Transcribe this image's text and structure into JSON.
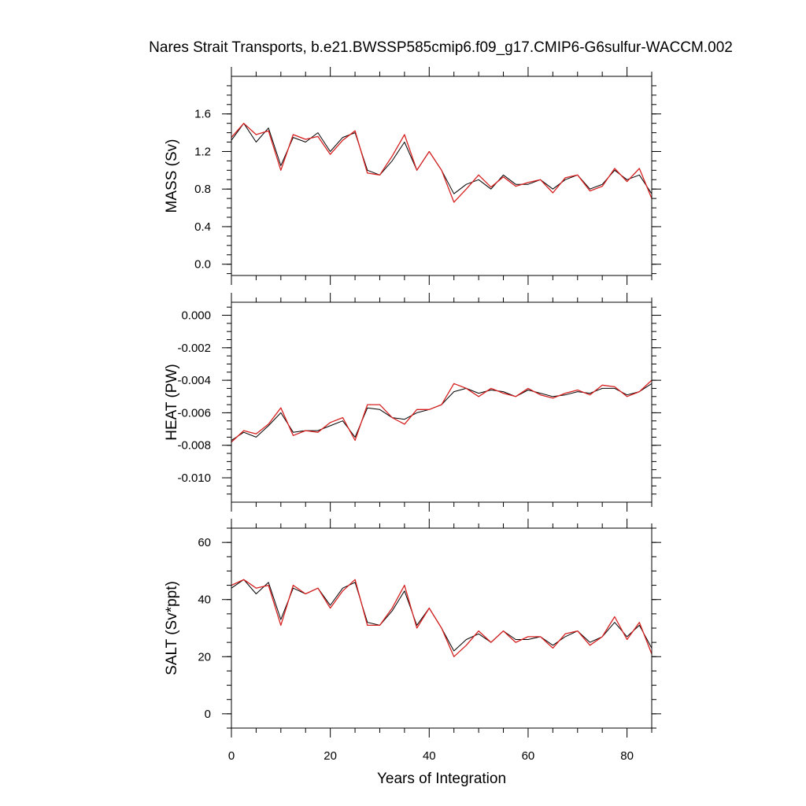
{
  "chart_data": {
    "type": "line",
    "title": "Nares Strait Transports, b.e21.BWSSP585cmip6.f09_g17.CMIP6-G6sulfur-WACCM.002",
    "xlabel": "Years of Integration",
    "xlim": [
      0,
      85
    ],
    "x_ticks": [
      0,
      20,
      40,
      60,
      80
    ],
    "x_tick_labels": [
      "0",
      "20",
      "40",
      "60",
      "80"
    ],
    "x": [
      0,
      2.5,
      5,
      7.5,
      10,
      12.5,
      15,
      17.5,
      20,
      22.5,
      25,
      27.5,
      30,
      32.5,
      35,
      37.5,
      40,
      42.5,
      45,
      47.5,
      50,
      52.5,
      55,
      57.5,
      60,
      62.5,
      65,
      67.5,
      70,
      72.5,
      75,
      77.5,
      80,
      82.5,
      85
    ],
    "panels": [
      {
        "ylabel": "MASS (Sv)",
        "ylim": [
          -0.12,
          2.0
        ],
        "y_ticks": [
          0.0,
          0.4,
          0.8,
          1.2,
          1.6
        ],
        "y_tick_labels": [
          "0.0",
          "0.4",
          "0.8",
          "1.2",
          "1.6"
        ],
        "series": [
          {
            "color": "#000000",
            "values": [
              1.32,
              1.5,
              1.3,
              1.45,
              1.05,
              1.35,
              1.3,
              1.4,
              1.2,
              1.35,
              1.4,
              1.0,
              0.95,
              1.1,
              1.3,
              1.0,
              1.2,
              1.0,
              0.75,
              0.85,
              0.9,
              0.8,
              0.95,
              0.85,
              0.85,
              0.9,
              0.8,
              0.9,
              0.95,
              0.8,
              0.85,
              1.0,
              0.9,
              0.95,
              0.75
            ]
          },
          {
            "color": "#d62020",
            "values": [
              1.35,
              1.5,
              1.38,
              1.42,
              1.0,
              1.38,
              1.33,
              1.36,
              1.17,
              1.32,
              1.42,
              0.97,
              0.95,
              1.15,
              1.38,
              1.0,
              1.2,
              1.0,
              0.66,
              0.8,
              0.95,
              0.82,
              0.93,
              0.83,
              0.87,
              0.9,
              0.76,
              0.92,
              0.95,
              0.78,
              0.83,
              1.02,
              0.88,
              1.02,
              0.7
            ]
          }
        ]
      },
      {
        "ylabel": "HEAT (PW)",
        "ylim": [
          -0.0115,
          0.0008
        ],
        "y_ticks": [
          -0.01,
          -0.008,
          -0.006,
          -0.004,
          -0.002,
          0.0
        ],
        "y_tick_labels": [
          "-0.010",
          "-0.008",
          "-0.006",
          "-0.004",
          "-0.002",
          "0.000"
        ],
        "series": [
          {
            "color": "#000000",
            "values": [
              -0.0077,
              -0.0072,
              -0.0075,
              -0.0068,
              -0.006,
              -0.0072,
              -0.0071,
              -0.0071,
              -0.0068,
              -0.0065,
              -0.0075,
              -0.0057,
              -0.0058,
              -0.0063,
              -0.0064,
              -0.006,
              -0.0058,
              -0.0055,
              -0.0047,
              -0.0045,
              -0.0048,
              -0.0046,
              -0.0047,
              -0.005,
              -0.0046,
              -0.0048,
              -0.005,
              -0.0049,
              -0.0047,
              -0.0048,
              -0.0045,
              -0.0045,
              -0.0049,
              -0.0047,
              -0.0042
            ]
          },
          {
            "color": "#d62020",
            "values": [
              -0.0078,
              -0.0071,
              -0.0073,
              -0.0067,
              -0.0057,
              -0.0074,
              -0.0071,
              -0.0072,
              -0.0066,
              -0.0063,
              -0.0077,
              -0.0055,
              -0.0055,
              -0.0063,
              -0.0067,
              -0.0058,
              -0.0058,
              -0.0055,
              -0.0042,
              -0.0045,
              -0.005,
              -0.0045,
              -0.0048,
              -0.005,
              -0.0045,
              -0.0049,
              -0.0051,
              -0.0048,
              -0.0046,
              -0.0049,
              -0.0043,
              -0.0044,
              -0.005,
              -0.0047,
              -0.004
            ]
          }
        ]
      },
      {
        "ylabel": "SALT (Sv*ppt)",
        "ylim": [
          -5,
          65
        ],
        "y_ticks": [
          0,
          20,
          40,
          60
        ],
        "y_tick_labels": [
          "0",
          "20",
          "40",
          "60"
        ],
        "series": [
          {
            "color": "#000000",
            "values": [
              44,
              47,
              42,
              46,
              33,
              44,
              42,
              44,
              38,
              44,
              46,
              32,
              31,
              36,
              43,
              31,
              37,
              30,
              22,
              26,
              28,
              25,
              29,
              26,
              26,
              27,
              24,
              27,
              29,
              25,
              27,
              32,
              27,
              31,
              23
            ]
          },
          {
            "color": "#d62020",
            "values": [
              45,
              47,
              44,
              45,
              31,
              45,
              42,
              44,
              37,
              43,
              47,
              31,
              31,
              37,
              45,
              30,
              37,
              30,
              20,
              24,
              29,
              25,
              29,
              25,
              27,
              27,
              23,
              28,
              29,
              24,
              27,
              34,
              26,
              32,
              21
            ]
          }
        ]
      }
    ]
  }
}
